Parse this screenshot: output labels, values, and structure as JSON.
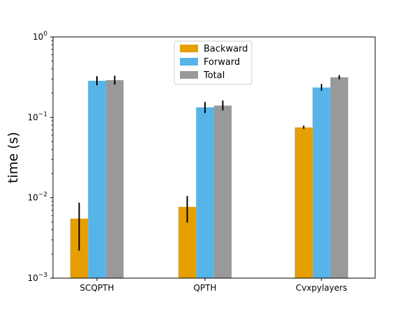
{
  "chart_data": {
    "type": "bar",
    "title": "",
    "xlabel": "",
    "ylabel": "time (s)",
    "yscale": "log",
    "ylim": [
      0.001,
      1
    ],
    "yticks": [
      {
        "value": 0.001,
        "base": "10",
        "exp": "−3"
      },
      {
        "value": 0.01,
        "base": "10",
        "exp": "−2"
      },
      {
        "value": 0.1,
        "base": "10",
        "exp": "−1"
      },
      {
        "value": 1,
        "base": "10",
        "exp": "0"
      }
    ],
    "categories": [
      "SCQPTH",
      "QPTH",
      "Cvxpylayers"
    ],
    "series": [
      {
        "name": "Backward",
        "color": "#E69F00",
        "values": [
          0.0055,
          0.0077,
          0.075
        ],
        "error_low": [
          0.0022,
          0.0049,
          0.072
        ],
        "error_high": [
          0.0087,
          0.0105,
          0.079
        ]
      },
      {
        "name": "Forward",
        "color": "#56B4E9",
        "values": [
          0.285,
          0.133,
          0.235
        ],
        "error_low": [
          0.25,
          0.113,
          0.215
        ],
        "error_high": [
          0.325,
          0.155,
          0.26
        ]
      },
      {
        "name": "Total",
        "color": "#999999",
        "values": [
          0.29,
          0.14,
          0.315
        ],
        "error_low": [
          0.255,
          0.122,
          0.298
        ],
        "error_high": [
          0.33,
          0.162,
          0.335
        ]
      }
    ],
    "legend": {
      "position": "top-center"
    },
    "grid": false
  }
}
